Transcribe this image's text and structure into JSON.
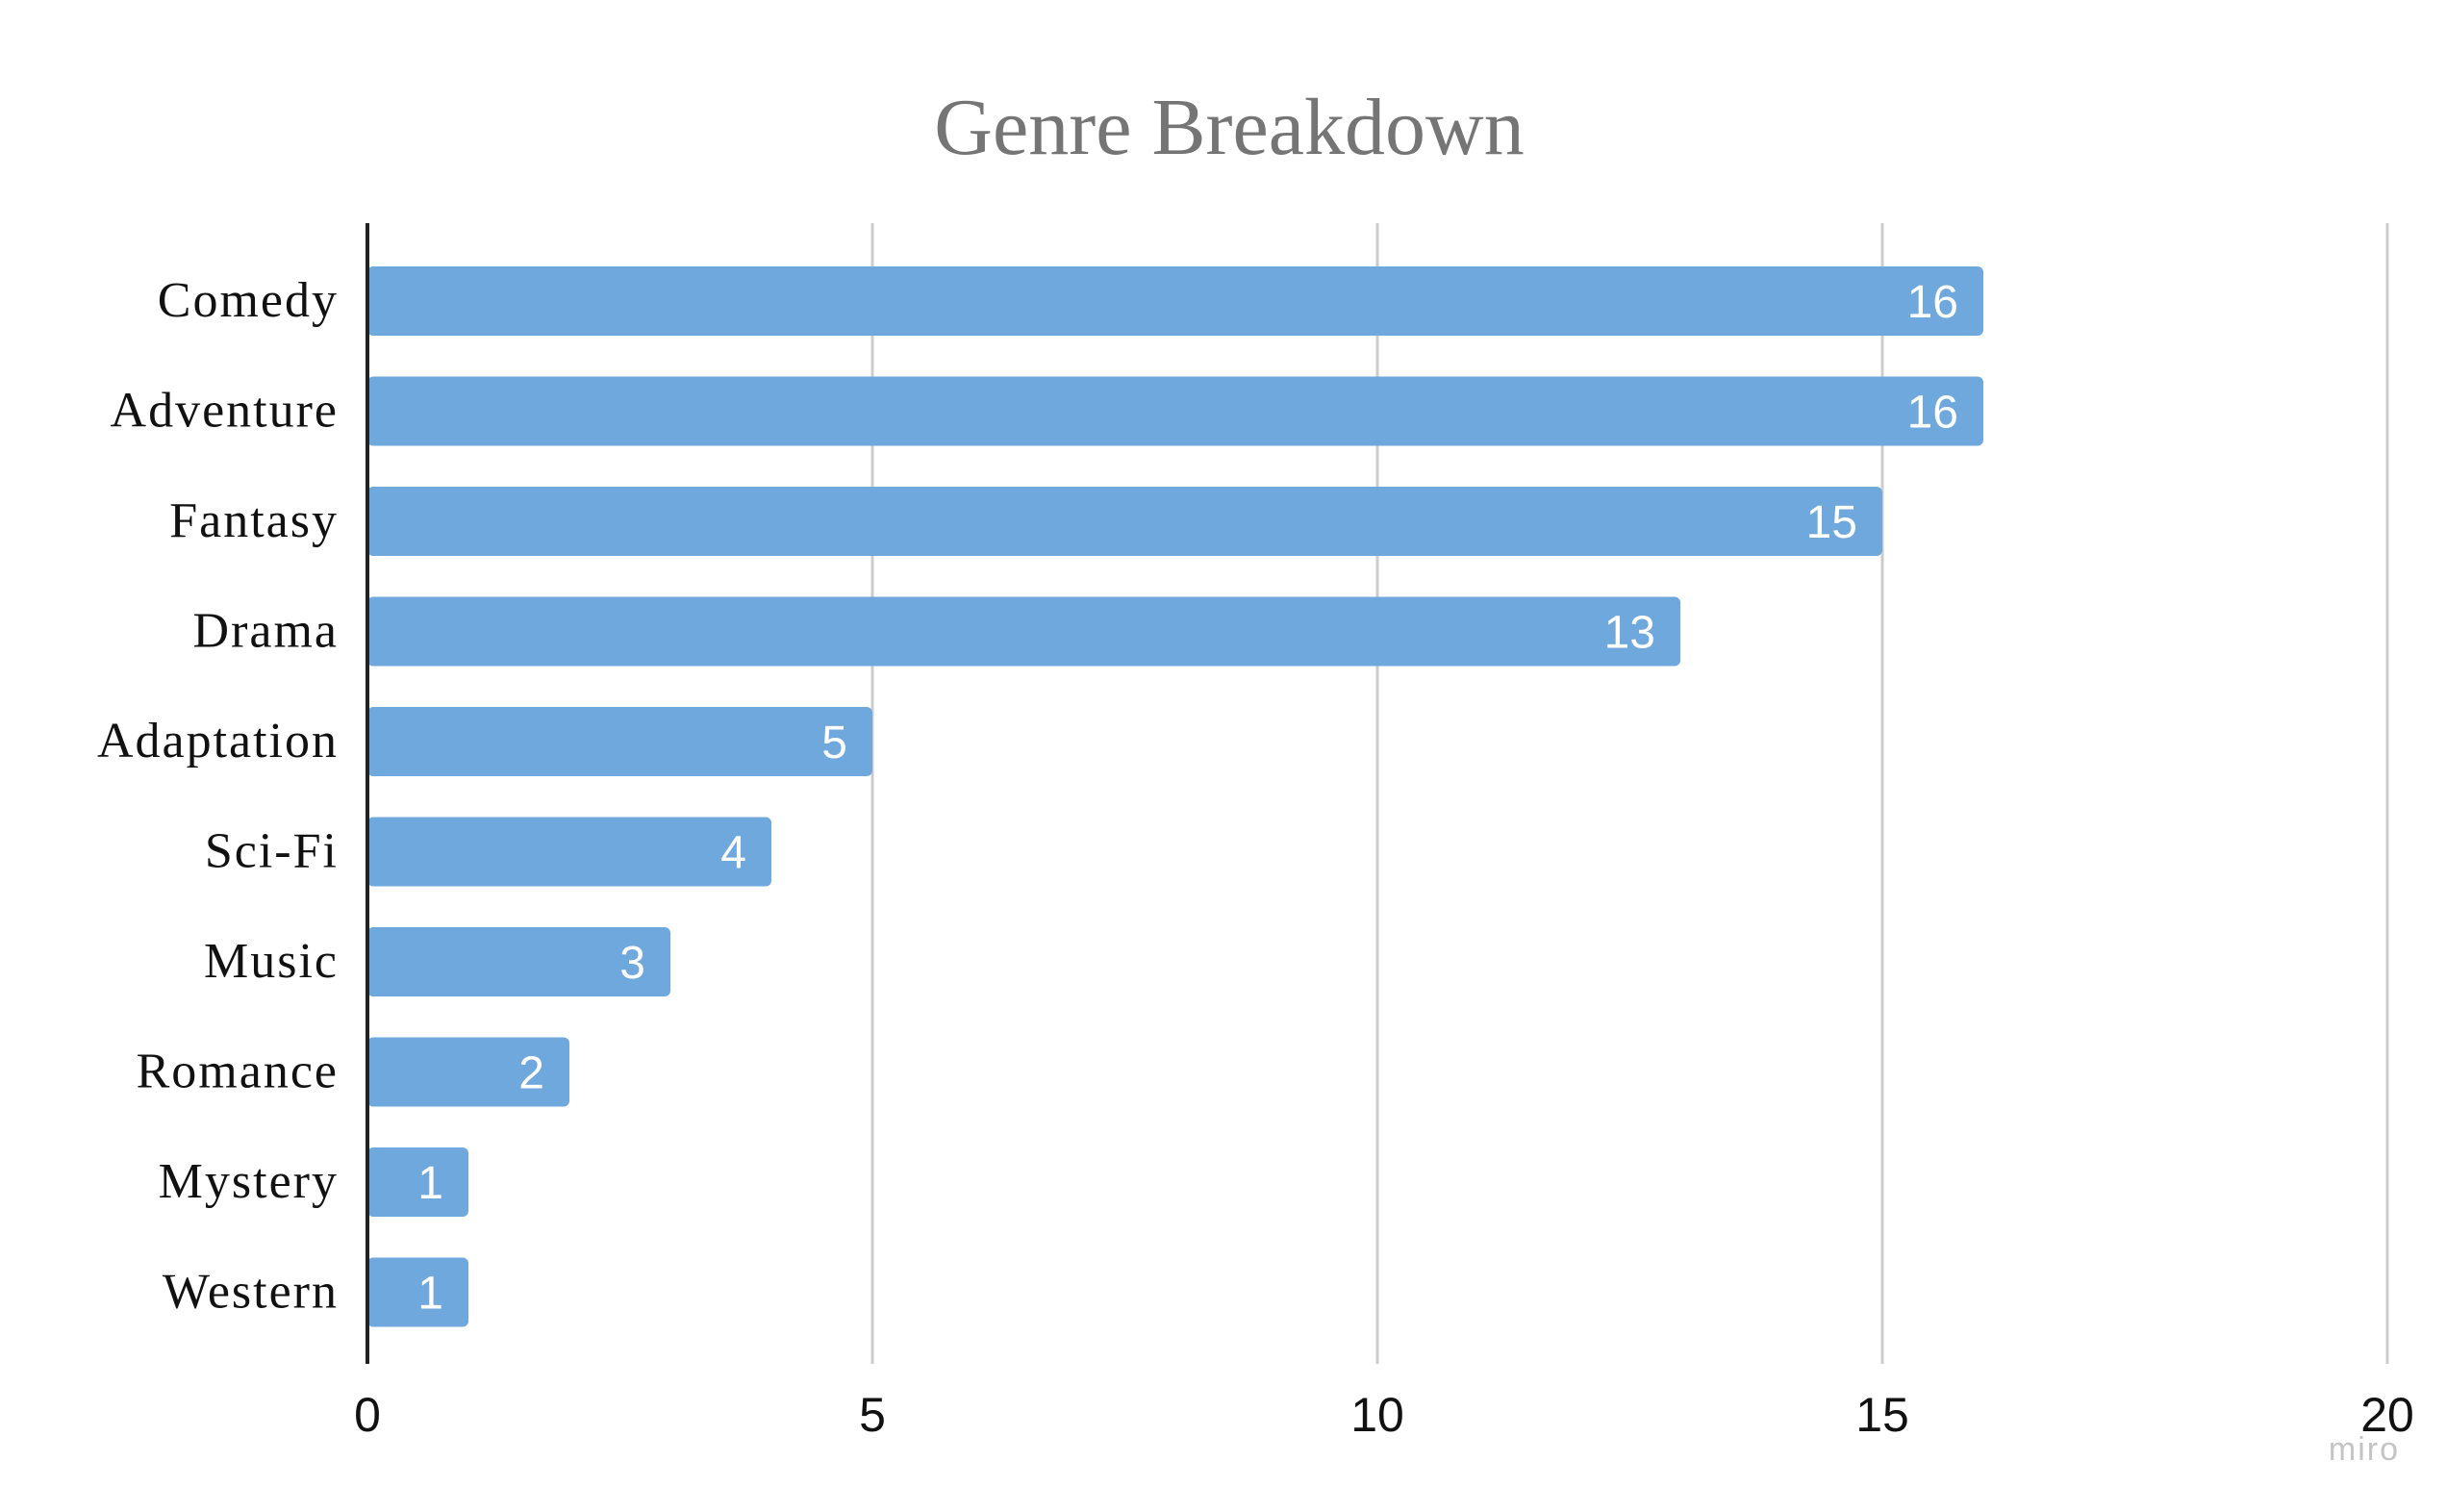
{
  "watermark": "miro",
  "colors": {
    "bar": "#6fa8dc",
    "grid": "#cccccc",
    "axis": "#222222"
  },
  "chart_data": {
    "type": "bar",
    "orientation": "horizontal",
    "title": "Genre Breakdown",
    "xlabel": "",
    "ylabel": "",
    "categories": [
      "Comedy",
      "Adventure",
      "Fantasy",
      "Drama",
      "Adaptation",
      "Sci-Fi",
      "Music",
      "Romance",
      "Mystery",
      "Western"
    ],
    "values": [
      16,
      16,
      15,
      13,
      5,
      4,
      3,
      2,
      1,
      1
    ],
    "xlim": [
      0,
      20
    ],
    "xticks": [
      0,
      5,
      10,
      15,
      20
    ],
    "grid": "vertical",
    "data_labels": true,
    "legend": "none"
  }
}
